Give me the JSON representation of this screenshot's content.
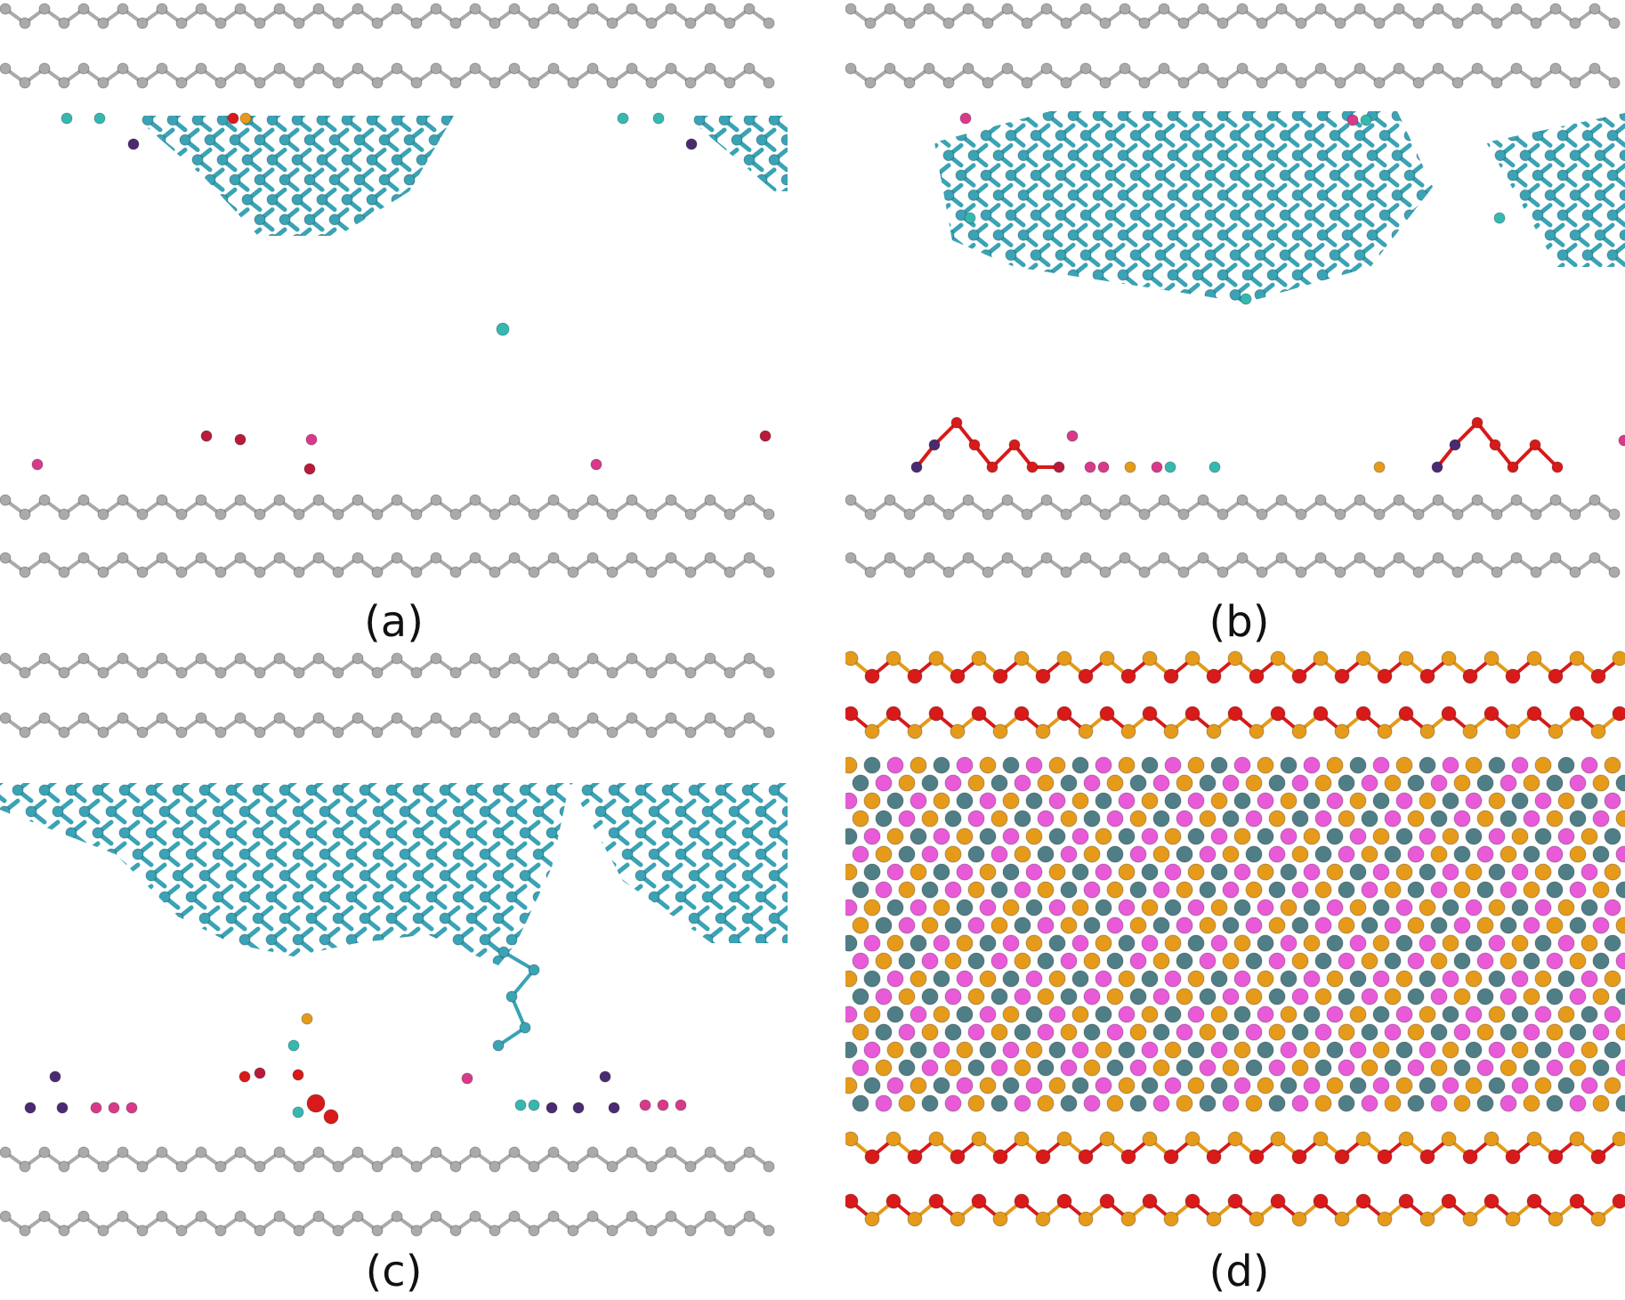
{
  "panels": [
    {
      "id": "a",
      "label": "(a)"
    },
    {
      "id": "b",
      "label": "(b)"
    },
    {
      "id": "c",
      "label": "(c)"
    },
    {
      "id": "d",
      "label": "(d)"
    }
  ],
  "colors": {
    "chain_gray": "#aaaaaa",
    "crystal_teal": "#3aa3b5",
    "atom_orange": "#e59a1a",
    "atom_red": "#d81a1a",
    "atom_magenta": "#e85ad8",
    "atom_slate": "#4f7e86",
    "ion_purple": "#4a2a70",
    "ion_crimson": "#b81a3a",
    "ion_pink": "#d83a8a",
    "ion_cyan": "#35b8b0"
  }
}
